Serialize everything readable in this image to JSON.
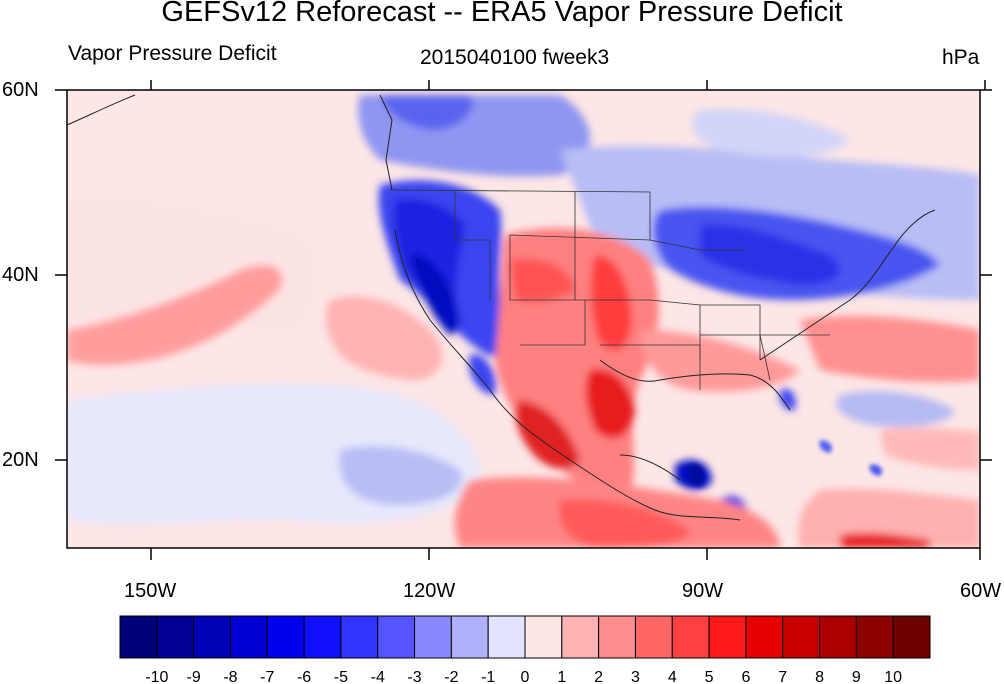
{
  "title": "GEFSv12 Reforecast -- ERA5 Vapor Pressure Deficit",
  "left_label": "Vapor Pressure Deficit",
  "center_label": "2015040100 fweek3",
  "units": "hPa",
  "lat_labels": [
    "60N",
    "40N",
    "20N"
  ],
  "lon_labels": [
    "150W",
    "120W",
    "90W",
    "60W"
  ],
  "colorbar": {
    "tick_labels": [
      "-10",
      "-9",
      "-8",
      "-7",
      "-6",
      "-5",
      "-4",
      "-3",
      "-2",
      "-1",
      "0",
      "1",
      "2",
      "3",
      "4",
      "5",
      "6",
      "7",
      "8",
      "9",
      "10"
    ],
    "colors": [
      "#00007a",
      "#000096",
      "#0000b4",
      "#0000d2",
      "#0000f0",
      "#1010ff",
      "#3333ff",
      "#5555ff",
      "#8888ff",
      "#b0b0ff",
      "#e3e3ff",
      "#ffe6e6",
      "#ffb3b3",
      "#ff8c8c",
      "#ff6666",
      "#ff4040",
      "#ff1a1a",
      "#e60000",
      "#c80000",
      "#aa0000",
      "#8c0000",
      "#700000"
    ]
  },
  "chart_data": {
    "type": "heatmap",
    "title": "GEFSv12 Reforecast -- ERA5 Vapor Pressure Deficit",
    "variable": "Vapor Pressure Deficit",
    "time": "2015040100 fweek3",
    "units": "hPa",
    "lat_range": [
      10,
      60
    ],
    "lon_range": [
      -160,
      -60
    ],
    "levels": [
      -10,
      -9,
      -8,
      -7,
      -6,
      -5,
      -4,
      -3,
      -2,
      -1,
      0,
      1,
      2,
      3,
      4,
      5,
      6,
      7,
      8,
      9,
      10
    ]
  }
}
